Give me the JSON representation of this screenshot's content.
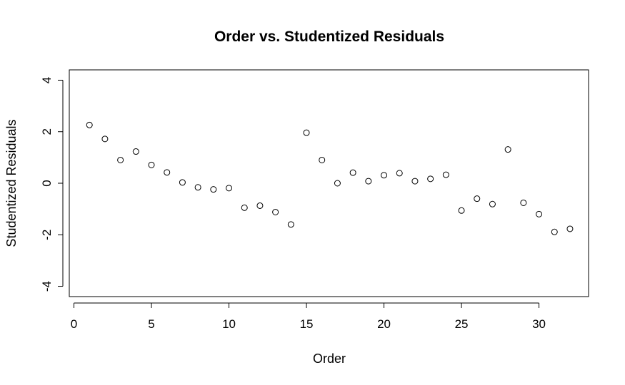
{
  "chart_data": {
    "type": "scatter",
    "title": "Order vs. Studentized Residuals",
    "xlabel": "Order",
    "ylabel": "Studentized Residuals",
    "xlim": [
      -0.3,
      33.2
    ],
    "ylim": [
      -4.4,
      4.4
    ],
    "xticks": [
      0,
      5,
      10,
      15,
      20,
      25,
      30
    ],
    "yticks": [
      -4,
      -2,
      0,
      2,
      4
    ],
    "grid": false,
    "legend": "none",
    "x": [
      1,
      2,
      3,
      4,
      5,
      6,
      7,
      8,
      9,
      10,
      11,
      12,
      13,
      14,
      15,
      16,
      17,
      18,
      19,
      20,
      21,
      22,
      23,
      24,
      25,
      26,
      27,
      28,
      29,
      30,
      31,
      32
    ],
    "y": [
      2.26,
      1.72,
      0.9,
      1.23,
      0.71,
      0.42,
      0.03,
      -0.16,
      -0.24,
      -0.19,
      -0.95,
      -0.87,
      -1.12,
      -1.6,
      1.96,
      0.9,
      0.0,
      0.41,
      0.08,
      0.31,
      0.39,
      0.08,
      0.17,
      0.33,
      -1.06,
      -0.6,
      -0.81,
      1.31,
      -0.76,
      -1.2,
      -1.89,
      -1.77
    ]
  }
}
